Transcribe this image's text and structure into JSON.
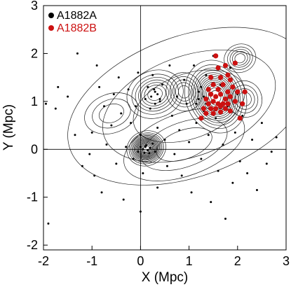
{
  "chart_data": {
    "type": "scatter",
    "title": "",
    "xlabel": "X (Mpc)",
    "ylabel": "Y (Mpc)",
    "xlim": [
      -2,
      3
    ],
    "ylim": [
      -2.1,
      3
    ],
    "xticks": [
      -2,
      -1,
      0,
      1,
      2,
      3
    ],
    "yticks": [
      -2,
      -1,
      0,
      1,
      2,
      3
    ],
    "zero_lines": true,
    "legend_placement": "top-left",
    "contours": "galaxy surface-density isodensity contours",
    "series": [
      {
        "name": "A1882A",
        "color": "#000000",
        "marker": "small-dot",
        "legend_marker": "large-dot",
        "points": [
          [
            -1.95,
            0.95
          ],
          [
            -1.75,
            0.85
          ],
          [
            -1.7,
            1.3
          ],
          [
            -1.5,
            1.1
          ],
          [
            -1.35,
            0.3
          ],
          [
            -1.3,
            2.0
          ],
          [
            -1.2,
            -0.35
          ],
          [
            -1.05,
            -0.1
          ],
          [
            -1.0,
            0.35
          ],
          [
            -0.95,
            -0.55
          ],
          [
            -0.9,
            1.75
          ],
          [
            -0.85,
            1.3
          ],
          [
            -0.8,
            -0.9
          ],
          [
            -0.75,
            0.9
          ],
          [
            -0.7,
            0.1
          ],
          [
            -0.6,
            0.5
          ],
          [
            -0.55,
            1.15
          ],
          [
            -0.5,
            -0.3
          ],
          [
            -0.45,
            1.5
          ],
          [
            -0.4,
            0.75
          ],
          [
            -0.35,
            -1.05
          ],
          [
            -0.3,
            0.05
          ],
          [
            -0.25,
            1.25
          ],
          [
            -0.2,
            0.55
          ],
          [
            -0.15,
            -0.2
          ],
          [
            -0.1,
            0.9
          ],
          [
            -0.05,
            1.6
          ],
          [
            0.0,
            -1.3
          ],
          [
            0.0,
            0.3
          ],
          [
            0.05,
            -0.5
          ],
          [
            0.1,
            1.05
          ],
          [
            0.15,
            1.3
          ],
          [
            0.2,
            0.85
          ],
          [
            0.25,
            1.55
          ],
          [
            0.3,
            1.2
          ],
          [
            0.35,
            0.45
          ],
          [
            0.35,
            -0.8
          ],
          [
            0.4,
            1.0
          ],
          [
            0.45,
            1.35
          ],
          [
            0.5,
            0.2
          ],
          [
            0.55,
            -0.35
          ],
          [
            0.6,
            1.75
          ],
          [
            0.65,
            0.7
          ],
          [
            0.7,
            -0.1
          ],
          [
            0.75,
            1.1
          ],
          [
            0.8,
            0.4
          ],
          [
            0.85,
            -0.55
          ],
          [
            0.9,
            1.45
          ],
          [
            0.95,
            0.95
          ],
          [
            1.0,
            0.15
          ],
          [
            1.05,
            -0.9
          ],
          [
            1.1,
            1.75
          ],
          [
            1.15,
            0.55
          ],
          [
            1.2,
            1.2
          ],
          [
            1.25,
            -0.2
          ],
          [
            1.3,
            0.8
          ],
          [
            1.35,
            1.55
          ],
          [
            1.4,
            0.3
          ],
          [
            1.45,
            -1.1
          ],
          [
            1.5,
            1.95
          ],
          [
            1.55,
            0.65
          ],
          [
            1.6,
            -0.45
          ],
          [
            1.65,
            1.35
          ],
          [
            1.7,
            0.1
          ],
          [
            1.75,
            -1.45
          ],
          [
            1.8,
            0.9
          ],
          [
            1.85,
            1.7
          ],
          [
            1.9,
            -0.7
          ],
          [
            1.95,
            0.35
          ],
          [
            2.0,
            1.15
          ],
          [
            2.05,
            -0.25
          ],
          [
            2.1,
            0.7
          ],
          [
            2.2,
            -0.5
          ],
          [
            2.3,
            0.2
          ],
          [
            2.4,
            -0.85
          ],
          [
            2.5,
            0.55
          ],
          [
            2.6,
            -0.3
          ],
          [
            2.7,
            -0.05
          ],
          [
            2.8,
            0.25
          ],
          [
            -1.9,
            -1.55
          ],
          [
            0.05,
            0.0
          ],
          [
            0.1,
            0.05
          ],
          [
            0.15,
            -0.02
          ],
          [
            0.08,
            -0.07
          ],
          [
            0.2,
            0.03
          ],
          [
            0.12,
            0.08
          ],
          [
            0.0,
            0.05
          ],
          [
            0.18,
            -0.08
          ],
          [
            0.25,
            0.12
          ],
          [
            -0.05,
            -0.05
          ],
          [
            0.3,
            -0.05
          ],
          [
            0.22,
            1.1
          ],
          [
            0.35,
            1.15
          ],
          [
            0.28,
            1.25
          ],
          [
            0.4,
            1.05
          ],
          [
            0.3,
            0.95
          ],
          [
            1.2,
            1.05
          ],
          [
            1.15,
            0.95
          ],
          [
            1.25,
            1.3
          ],
          [
            1.3,
            1.1
          ],
          [
            1.35,
            0.95
          ],
          [
            1.4,
            1.25
          ]
        ]
      },
      {
        "name": "A1882B",
        "color": "#cc1111",
        "marker": "large-dot",
        "legend_marker": "large-dot",
        "points": [
          [
            1.55,
            1.95
          ],
          [
            1.75,
            1.75
          ],
          [
            1.95,
            1.8
          ],
          [
            1.6,
            1.7
          ],
          [
            1.8,
            1.55
          ],
          [
            1.45,
            1.5
          ],
          [
            1.65,
            1.5
          ],
          [
            1.85,
            1.45
          ],
          [
            1.5,
            1.35
          ],
          [
            1.7,
            1.35
          ],
          [
            1.9,
            1.3
          ],
          [
            1.4,
            1.25
          ],
          [
            1.6,
            1.25
          ],
          [
            1.8,
            1.2
          ],
          [
            2.0,
            1.2
          ],
          [
            1.45,
            1.15
          ],
          [
            1.55,
            1.1
          ],
          [
            1.65,
            1.15
          ],
          [
            1.75,
            1.05
          ],
          [
            1.85,
            1.1
          ],
          [
            1.35,
            1.05
          ],
          [
            1.5,
            1.0
          ],
          [
            1.6,
            0.95
          ],
          [
            1.7,
            0.95
          ],
          [
            1.8,
            0.95
          ],
          [
            1.4,
            0.95
          ],
          [
            1.45,
            0.85
          ],
          [
            1.55,
            0.85
          ],
          [
            1.65,
            0.9
          ],
          [
            1.75,
            0.85
          ],
          [
            1.3,
            0.85
          ],
          [
            1.35,
            0.75
          ],
          [
            1.5,
            0.75
          ],
          [
            1.65,
            0.78
          ],
          [
            1.85,
            0.8
          ],
          [
            1.25,
            0.65
          ],
          [
            2.05,
            0.65
          ],
          [
            2.1,
            0.95
          ],
          [
            1.95,
            1.0
          ],
          [
            2.15,
            1.2
          ]
        ]
      }
    ],
    "legend": [
      {
        "label": "A1882A",
        "color": "#000000"
      },
      {
        "label": "A1882B",
        "color": "#cc1111"
      }
    ]
  }
}
